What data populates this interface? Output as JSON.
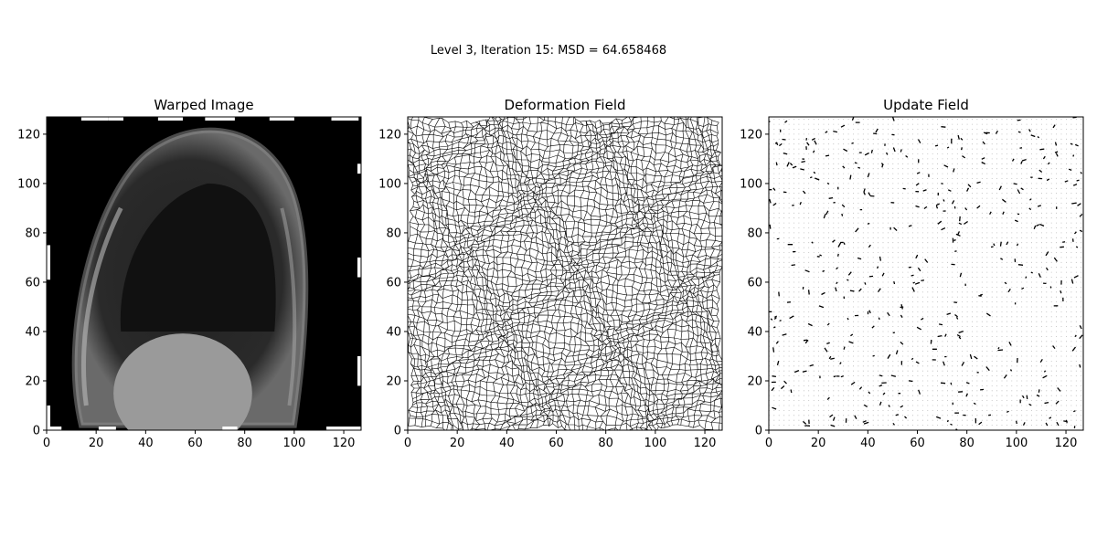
{
  "figure": {
    "suptitle": "Level 3, Iteration 15: MSD = 64.658468"
  },
  "chart_data": [
    {
      "type": "heatmap",
      "title": "Warped Image",
      "xlim": [
        0,
        127
      ],
      "ylim": [
        0,
        127
      ],
      "x_ticks": [
        0,
        20,
        40,
        60,
        80,
        100,
        120
      ],
      "y_ticks": [
        0,
        20,
        40,
        60,
        80,
        100,
        120
      ],
      "colormap": "gray",
      "background_color": "#000000"
    },
    {
      "type": "line",
      "title": "Deformation Field",
      "xlim": [
        0,
        127
      ],
      "ylim": [
        0,
        127
      ],
      "x_ticks": [
        0,
        20,
        40,
        60,
        80,
        100,
        120
      ],
      "y_ticks": [
        0,
        20,
        40,
        60,
        80,
        100,
        120
      ],
      "grid_lines_per_axis": 64,
      "line_color": "#000000"
    },
    {
      "type": "scatter",
      "title": "Update Field",
      "xlim": [
        0,
        127
      ],
      "ylim": [
        0,
        127
      ],
      "x_ticks": [
        0,
        20,
        40,
        60,
        80,
        100,
        120
      ],
      "y_ticks": [
        0,
        20,
        40,
        60,
        80,
        100,
        120
      ],
      "marker_color": "#000000"
    }
  ]
}
